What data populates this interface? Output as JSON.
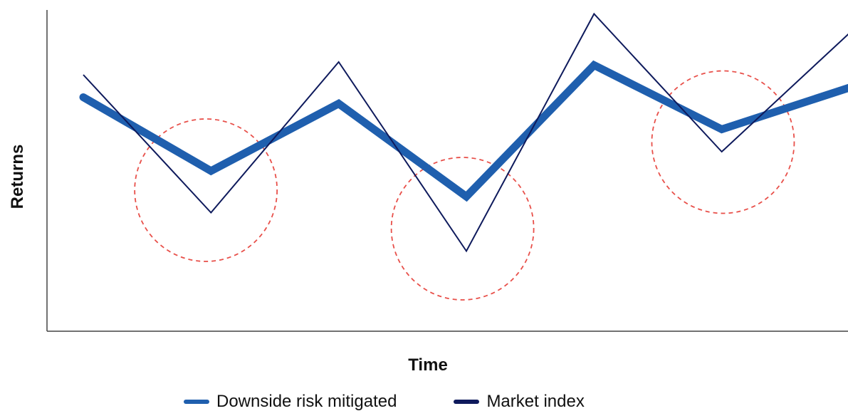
{
  "chart_data": {
    "type": "line",
    "title": "",
    "xlabel": "Time",
    "ylabel": "Returns",
    "axis_ticks": false,
    "grid": false,
    "legend_position": "bottom-center",
    "x": [
      0,
      1,
      2,
      3,
      4,
      5,
      6
    ],
    "xlim": [
      -0.3,
      6.05
    ],
    "ylim": [
      0,
      10
    ],
    "series": [
      {
        "name": "Downside risk mitigated",
        "color": "#1f5fae",
        "style": "thick",
        "values": [
          7.3,
          5.0,
          7.1,
          4.2,
          8.3,
          6.3,
          7.6
        ]
      },
      {
        "name": "Market index",
        "color": "#0e1a5c",
        "style": "thin",
        "values": [
          8.0,
          3.7,
          8.4,
          2.5,
          9.9,
          5.6,
          9.3
        ]
      }
    ],
    "annotations": [
      {
        "type": "dashed-circle",
        "color": "#e8504a",
        "x": 0.96,
        "y": 4.4
      },
      {
        "type": "dashed-circle",
        "color": "#e8504a",
        "x": 2.97,
        "y": 3.2
      },
      {
        "type": "dashed-circle",
        "color": "#e8504a",
        "x": 5.01,
        "y": 5.9
      }
    ]
  }
}
